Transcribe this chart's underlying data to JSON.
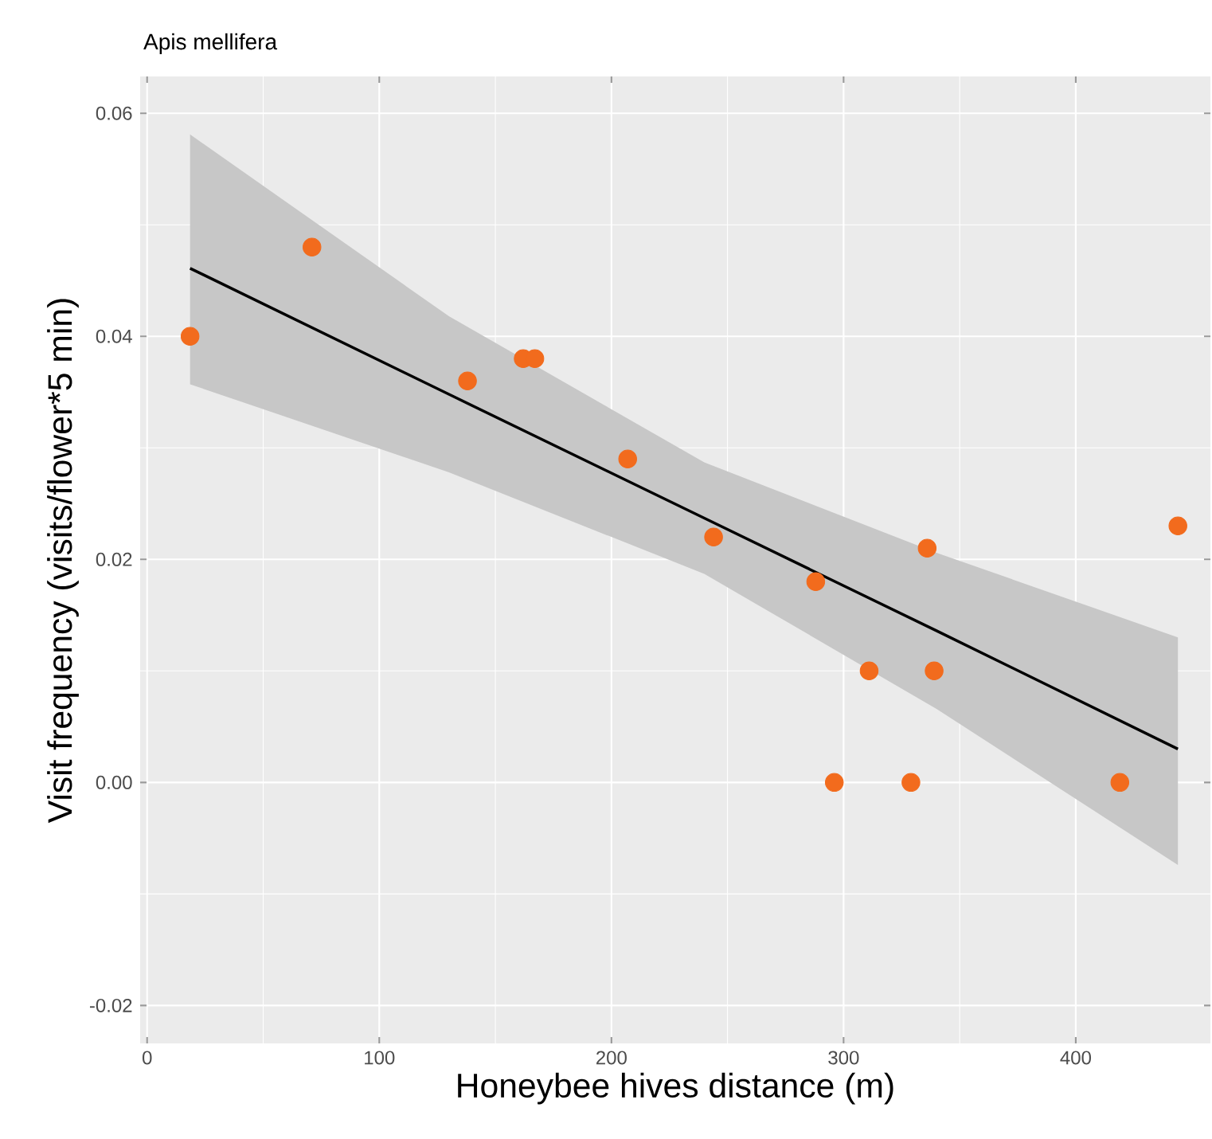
{
  "chart_data": {
    "type": "scatter",
    "title": "Apis mellifera",
    "xlabel": "Honeybee hives distance (m)",
    "ylabel": "Visit frequency (visits/flower*5 min)",
    "xlim": [
      -3,
      458
    ],
    "ylim": [
      -0.0234,
      0.0633
    ],
    "xticks": [
      0,
      100,
      200,
      300,
      400
    ],
    "yticks": [
      -0.02,
      {
        "value": 0,
        "label": "0.00"
      },
      0.02,
      0.04,
      0.06
    ],
    "grid": true,
    "marker": "circle",
    "series": [
      {
        "type": "scatter",
        "color": "#f26b1d",
        "x": [
          18.5,
          71,
          138,
          162,
          167,
          207,
          244,
          288,
          296,
          311,
          329,
          336,
          339,
          419,
          444
        ],
        "values": [
          0.04,
          0.048,
          0.036,
          0.038,
          0.038,
          0.029,
          0.022,
          0.018,
          0,
          0.01,
          0,
          0.021,
          0.01,
          0,
          0.023
        ]
      },
      {
        "type": "line",
        "color": "#000000",
        "line_style": "solid",
        "marker": "none",
        "x": [
          18.5,
          130,
          240,
          340,
          444
        ],
        "values": [
          0.0461,
          0.0348,
          0.0237,
          0.0136,
          0.003
        ],
        "lower": [
          0.0357,
          0.0278,
          0.0187,
          0.0066,
          -0.0074
        ],
        "upper": [
          0.0581,
          0.0418,
          0.0287,
          0.0206,
          0.013
        ]
      }
    ]
  }
}
